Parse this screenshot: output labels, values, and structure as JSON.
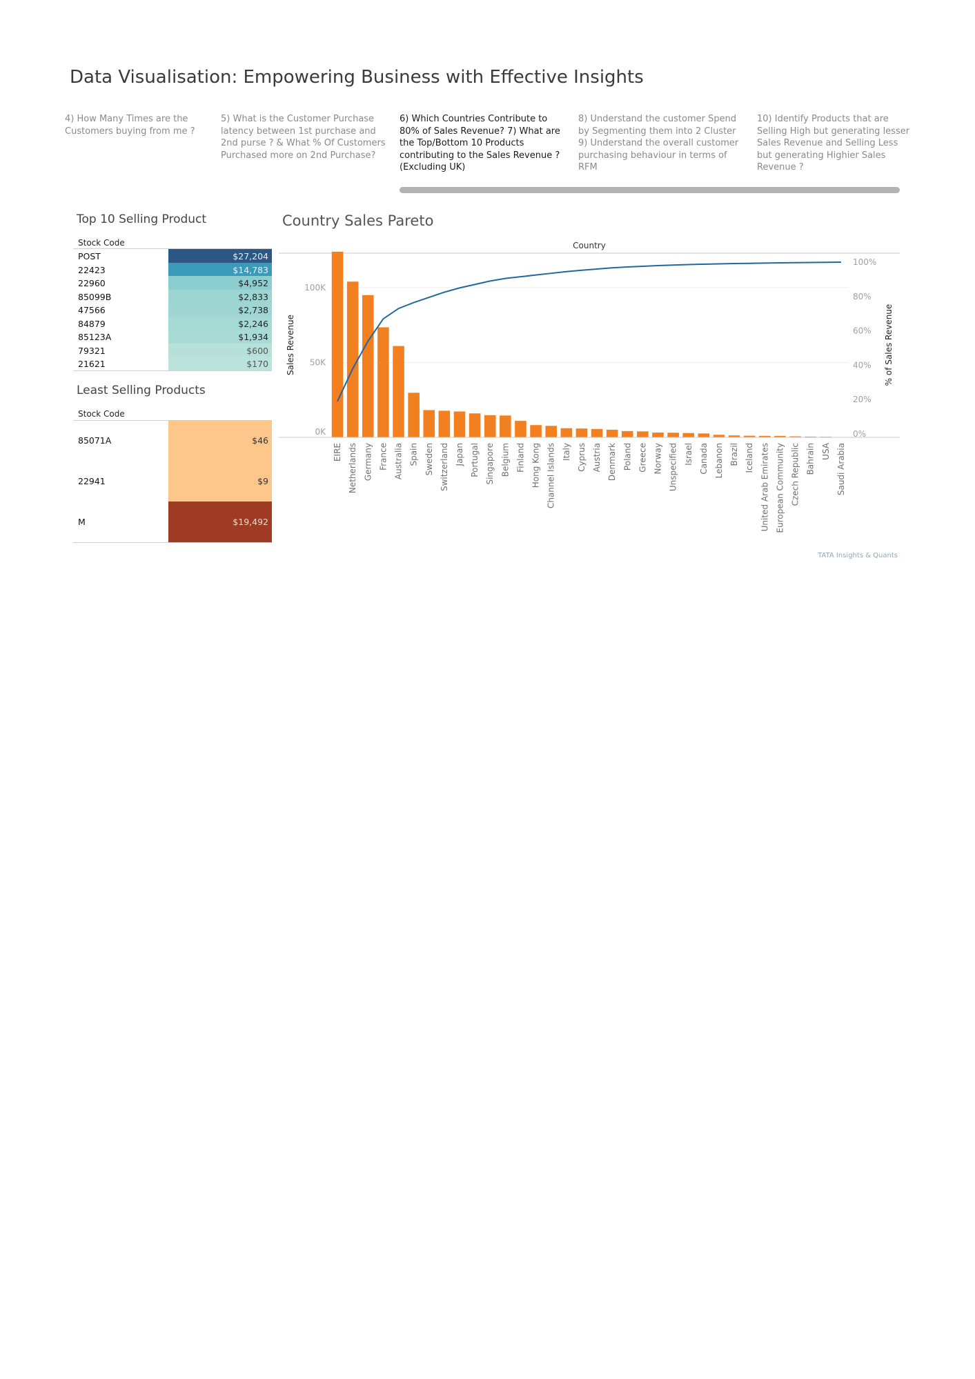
{
  "page_title": "Data Visualisation: Empowering Business with Effective Insights",
  "tabs": [
    {
      "label": "4) How Many Times are the Customers buying from me ?",
      "active": false
    },
    {
      "label": "5) What is the Customer Purchase latency between 1st purchase and 2nd purse ? & What % Of Customers Purchased more on 2nd Purchase?",
      "active": false
    },
    {
      "label": "6) Which Countries Contribute to 80% of Sales Revenue?   7) What are the Top/Bottom 10 Products contributing to the Sales Revenue ? (Excluding UK)",
      "active": true
    },
    {
      "label": "8) Understand the customer Spend by Segmenting them into 2 Cluster   9) Understand the overall customer purchasing behaviour  in terms of RFM",
      "active": false
    },
    {
      "label": "10) Identify Products that are Selling High but generating lesser Sales Revenue and Selling Less but generating Highier Sales Revenue ?",
      "active": false
    }
  ],
  "top10": {
    "title": "Top 10  Selling  Product",
    "column_header": "Stock Code",
    "rows": [
      {
        "code": "POST",
        "value": "$27,204",
        "color": "#2a5783",
        "text_color": "#e8eef5"
      },
      {
        "code": "22423",
        "value": "$14,783",
        "color": "#3b9ab8",
        "text_color": "#e6f3f7"
      },
      {
        "code": "22960",
        "value": "$4,952",
        "color": "#8ccdd0",
        "text_color": "#222222"
      },
      {
        "code": "85099B",
        "value": "$2,833",
        "color": "#9dd5d3",
        "text_color": "#222222"
      },
      {
        "code": "47566",
        "value": "$2,738",
        "color": "#9fd6d3",
        "text_color": "#222222"
      },
      {
        "code": "84879",
        "value": "$2,246",
        "color": "#a5d9d4",
        "text_color": "#222222"
      },
      {
        "code": "85123A",
        "value": "$1,934",
        "color": "#a9dbd6",
        "text_color": "#222222"
      },
      {
        "code": "79321",
        "value": "$600",
        "color": "#b6e1d9",
        "text_color": "#555555"
      },
      {
        "code": "21621",
        "value": "$170",
        "color": "#bbe3dc",
        "text_color": "#555555"
      }
    ]
  },
  "least": {
    "title": "Least Selling Products",
    "column_header": "Stock Code",
    "rows": [
      {
        "code": "85071A",
        "value": "$46",
        "color": "#fdc68a",
        "text_color": "#333333"
      },
      {
        "code": "22941",
        "value": "$9",
        "color": "#fdc68a",
        "text_color": "#333333"
      },
      {
        "code": "M",
        "value": "$19,492",
        "color": "#9f3b23",
        "text_color": "#f1d9cf"
      }
    ]
  },
  "footer_note": "TATA Insights & Quants",
  "chart_data": {
    "type": "bar",
    "title": "Country Sales Pareto",
    "xlabel": "Country",
    "ylabel": "Sales Revenue",
    "y2label": "% of Sales Revenue",
    "ylim": [
      0,
      123000
    ],
    "y2lim": [
      0,
      100
    ],
    "yticks": [
      0,
      50000,
      100000
    ],
    "ytick_labels": [
      "0K",
      "50K",
      "100K"
    ],
    "y2ticks": [
      0,
      20,
      40,
      60,
      80,
      100
    ],
    "y2tick_labels": [
      "0%",
      "20%",
      "40%",
      "60%",
      "80%",
      "100%"
    ],
    "grid": true,
    "bar_color": "#f28020",
    "line_color": "#2166a0",
    "categories": [
      "EIRE",
      "Netherlands",
      "Germany",
      "France",
      "Australia",
      "Spain",
      "Sweden",
      "Switzerland",
      "Japan",
      "Portugal",
      "Singapore",
      "Belgium",
      "Finland",
      "Hong Kong",
      "Channel Islands",
      "Italy",
      "Cyprus",
      "Austria",
      "Denmark",
      "Poland",
      "Greece",
      "Norway",
      "Unspecified",
      "Israel",
      "Canada",
      "Lebanon",
      "Brazil",
      "Iceland",
      "United Arab Emirates",
      "European Community",
      "Czech Republic",
      "Bahrain",
      "USA",
      "Saudi Arabia"
    ],
    "series": [
      {
        "name": "Sales Revenue",
        "type": "bar",
        "values": [
          124000,
          104000,
          95000,
          73500,
          61000,
          29800,
          18200,
          17800,
          17300,
          16000,
          14800,
          14600,
          11000,
          8200,
          7700,
          6100,
          5900,
          5600,
          5100,
          4200,
          4000,
          3200,
          3100,
          2900,
          2600,
          1700,
          1300,
          1100,
          1000,
          1000,
          700,
          500,
          400,
          200
        ]
      },
      {
        "name": "% of Sales Revenue",
        "type": "line",
        "values": [
          19,
          38,
          54,
          67,
          73,
          76.5,
          79.5,
          82.5,
          85,
          87,
          89,
          90.5,
          91.5,
          92.5,
          93.5,
          94.5,
          95.3,
          96,
          96.7,
          97.2,
          97.6,
          98,
          98.3,
          98.6,
          98.8,
          99,
          99.2,
          99.3,
          99.45,
          99.6,
          99.7,
          99.8,
          99.9,
          100
        ]
      }
    ]
  }
}
